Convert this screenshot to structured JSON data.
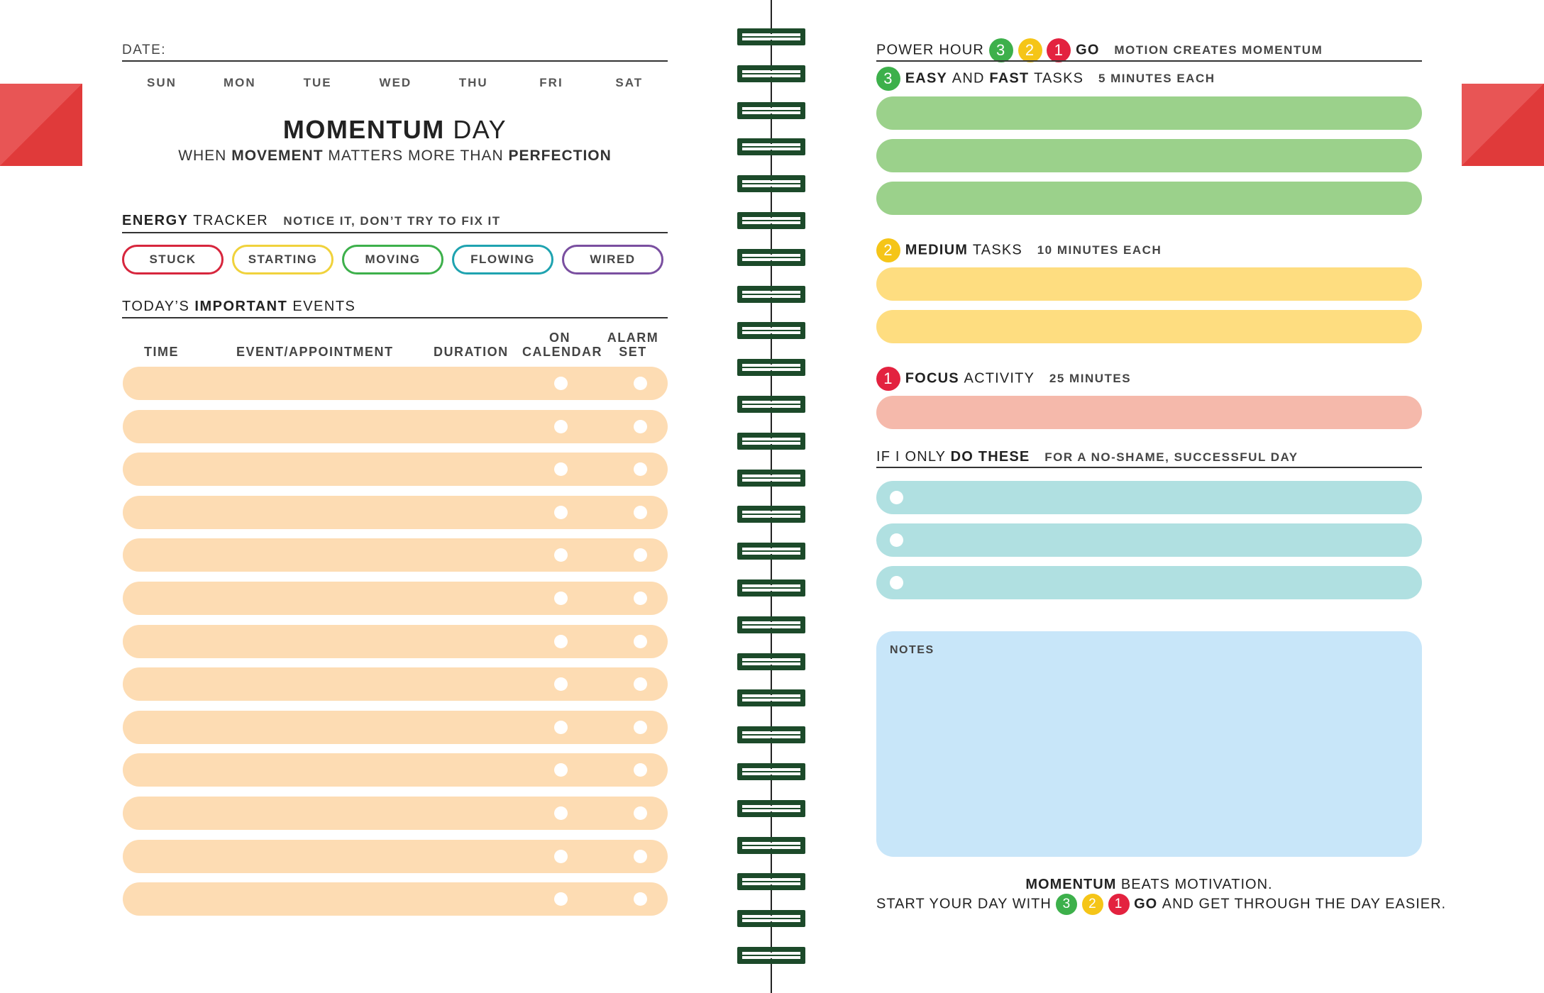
{
  "left": {
    "date_label": "DATE:",
    "days": [
      "SUN",
      "MON",
      "TUE",
      "WED",
      "THU",
      "FRI",
      "SAT"
    ],
    "title_bold": "MOMENTUM",
    "title_rest": "DAY",
    "subtitle": {
      "p1": "WHEN",
      "p2": "MOVEMENT",
      "p3": "MATTERS MORE THAN",
      "p4": "PERFECTION"
    },
    "energy": {
      "head_bold": "ENERGY",
      "head_rest": "TRACKER",
      "note": "NOTICE IT, DON’T TRY TO FIX IT",
      "options": [
        {
          "label": "STUCK",
          "color": "#d7263d"
        },
        {
          "label": "STARTING",
          "color": "#f0d23c"
        },
        {
          "label": "MOVING",
          "color": "#3db04b"
        },
        {
          "label": "FLOWING",
          "color": "#1fa3b0"
        },
        {
          "label": "WIRED",
          "color": "#7a4fa0"
        }
      ]
    },
    "events": {
      "head_pre": "TODAY’S",
      "head_bold": "IMPORTANT",
      "head_post": "EVENTS",
      "col_time": "TIME",
      "col_event": "EVENT/APPOINTMENT",
      "col_duration": "DURATION",
      "col_calendar_1": "ON",
      "col_calendar_2": "CALENDAR",
      "col_alarm_1": "ALARM",
      "col_alarm_2": "SET",
      "row_color": "#fddcb3"
    }
  },
  "right": {
    "power": {
      "label": "POWER HOUR",
      "n3": "3",
      "n2": "2",
      "n1": "1",
      "go": "GO",
      "note": "MOTION CREATES MOMENTUM"
    },
    "easy": {
      "num": "3",
      "b1": "EASY",
      "mid": "AND",
      "b2": "FAST",
      "rest": "TASKS",
      "note": "5 MINUTES EACH",
      "color": "#9bd18b"
    },
    "medium": {
      "num": "2",
      "b1": "MEDIUM",
      "rest": "TASKS",
      "note": "10 MINUTES EACH",
      "color": "#fedd80"
    },
    "focus": {
      "num": "1",
      "b1": "FOCUS",
      "rest": "ACTIVITY",
      "note": "25 MINUTES",
      "color": "#f5b9ab"
    },
    "only": {
      "pre": "IF I ONLY",
      "bold": "DO THESE",
      "note": "FOR A NO-SHAME, SUCCESSFUL DAY",
      "color": "#b0e0e1"
    },
    "notes": {
      "label": "NOTES",
      "color": "#c8e6f9"
    },
    "footer": {
      "l1_bold": "MOMENTUM",
      "l1_rest": "BEATS MOTIVATION.",
      "l2_pre": "START YOUR DAY WITH",
      "n3": "3",
      "n2": "2",
      "n1": "1",
      "go": "GO",
      "l2_post": "AND GET THROUGH THE DAY EASIER."
    }
  }
}
